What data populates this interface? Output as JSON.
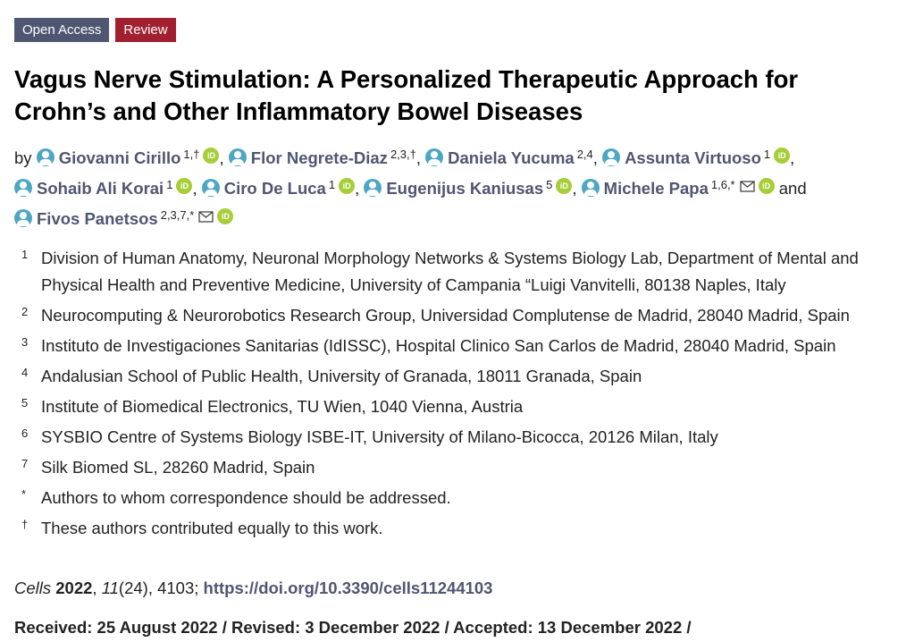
{
  "badges": {
    "open_access": "Open Access",
    "review": "Review"
  },
  "title": {
    "line1": "Vagus Nerve Stimulation: A Personalized Therapeutic Approach for",
    "line2": "Crohn’s and Other Inflammatory Bowel Diseases"
  },
  "authors": {
    "prefix": "by",
    "list": [
      {
        "name": "Giovanni Cirillo",
        "sup": "1,†",
        "orcid": true,
        "email": false,
        "sep": ","
      },
      {
        "name": "Flor Negrete-Diaz",
        "sup": "2,3,†",
        "orcid": false,
        "email": false,
        "sep": ","
      },
      {
        "name": "Daniela Yucuma",
        "sup": "2,4",
        "orcid": false,
        "email": false,
        "sep": ","
      },
      {
        "name": "Assunta Virtuoso",
        "sup": "1",
        "orcid": true,
        "email": false,
        "sep": ","
      },
      {
        "name": "Sohaib Ali Korai",
        "sup": "1",
        "orcid": true,
        "email": false,
        "sep": ","
      },
      {
        "name": "Ciro De Luca",
        "sup": "1",
        "orcid": true,
        "email": false,
        "sep": ","
      },
      {
        "name": "Eugenijus Kaniusas",
        "sup": "5",
        "orcid": true,
        "email": false,
        "sep": ","
      },
      {
        "name": "Michele Papa",
        "sup": "1,6,*",
        "orcid": true,
        "email": true,
        "sep": " and"
      },
      {
        "name": "Fivos Panetsos",
        "sup": "2,3,7,*",
        "orcid": true,
        "email": true,
        "sep": ""
      }
    ],
    "orcid_label": "iD"
  },
  "affiliations": [
    {
      "num": "1",
      "text": "Division of Human Anatomy, Neuronal Morphology Networks & Systems Biology Lab, Department of Mental and Physical Health and Preventive Medicine, University of Campania “Luigi Vanvitelli, 80138 Naples, Italy"
    },
    {
      "num": "2",
      "text": "Neurocomputing & Neurorobotics Research Group, Universidad Complutense de Madrid, 28040 Madrid, Spain"
    },
    {
      "num": "3",
      "text": "Instituto de Investigaciones Sanitarias (IdISSC), Hospital Clinico San Carlos de Madrid, 28040 Madrid, Spain"
    },
    {
      "num": "4",
      "text": "Andalusian School of Public Health, University of Granada, 18011 Granada, Spain"
    },
    {
      "num": "5",
      "text": "Institute of Biomedical Electronics, TU Wien, 1040 Vienna, Austria"
    },
    {
      "num": "6",
      "text": "SYSBIO Centre of Systems Biology ISBE-IT, University of Milano-Bicocca, 20126 Milan, Italy"
    },
    {
      "num": "7",
      "text": "Silk Biomed SL, 28260 Madrid, Spain"
    },
    {
      "num": "*",
      "text": "Authors to whom correspondence should be addressed."
    },
    {
      "num": "†",
      "text": "These authors contributed equally to this work."
    }
  ],
  "citation": {
    "journal": "Cells",
    "year": "2022",
    "volume": "11",
    "issue": "(24)",
    "pages": ", 4103; ",
    "doi": "https://doi.org/10.3390/cells11244103"
  },
  "dates": {
    "text": "Received: 25 August 2022 / Revised: 3 December 2022 / Accepted: 13 December 2022 /"
  }
}
